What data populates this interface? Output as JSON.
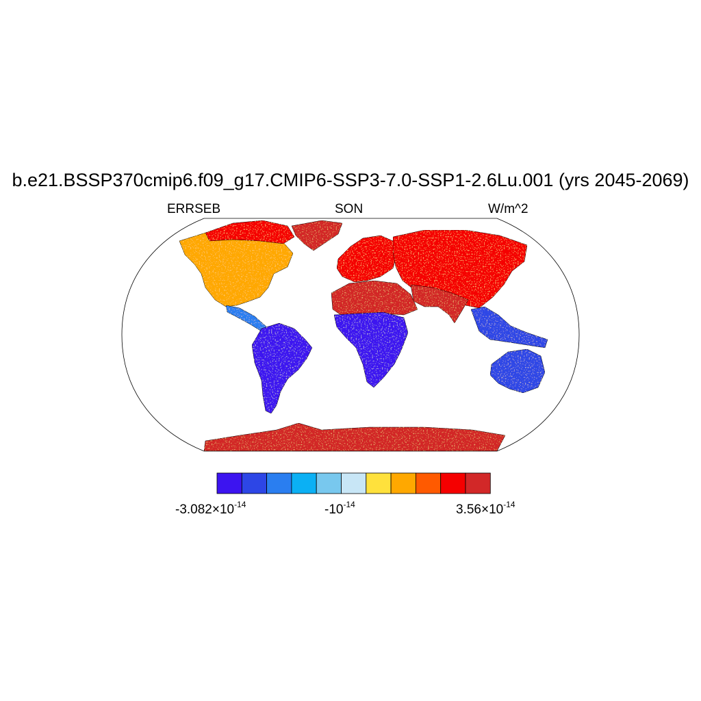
{
  "title": "b.e21.BSSP370cmip6.f09_g17.CMIP6-SSP3-7.0-SSP1-2.6Lu.001 (yrs 2045-2069)",
  "variable": "ERRSEB",
  "season": "SON",
  "units": "W/m^2",
  "colorbar": {
    "colors": [
      "#3c14f0",
      "#2d46e6",
      "#2a7ef0",
      "#0bb0f4",
      "#78c8ee",
      "#c8e6f6",
      "#ffe13c",
      "#ffa800",
      "#ff5a00",
      "#f50000",
      "#d22828"
    ],
    "labels": [
      {
        "mantissa": "-3.082×10",
        "exponent": "-14"
      },
      {
        "mantissa": "-10",
        "exponent": "-14"
      },
      {
        "mantissa": "3.56×10",
        "exponent": "-14"
      }
    ]
  },
  "projection": "Robinson",
  "regions": [
    {
      "name": "north-america",
      "color": "#ffa800"
    },
    {
      "name": "canada-arctic",
      "color": "#f50000"
    },
    {
      "name": "greenland",
      "color": "#d22828"
    },
    {
      "name": "central-america",
      "color": "#2a7ef0"
    },
    {
      "name": "south-america",
      "color": "#3c14f0"
    },
    {
      "name": "europe",
      "color": "#f50000"
    },
    {
      "name": "north-africa",
      "color": "#d22828"
    },
    {
      "name": "southern-africa",
      "color": "#3c14f0"
    },
    {
      "name": "asia",
      "color": "#f50000"
    },
    {
      "name": "india",
      "color": "#d22828"
    },
    {
      "name": "southeast-asia",
      "color": "#2d46e6"
    },
    {
      "name": "australia",
      "color": "#2d46e6"
    },
    {
      "name": "antarctica",
      "color": "#d22828"
    }
  ]
}
